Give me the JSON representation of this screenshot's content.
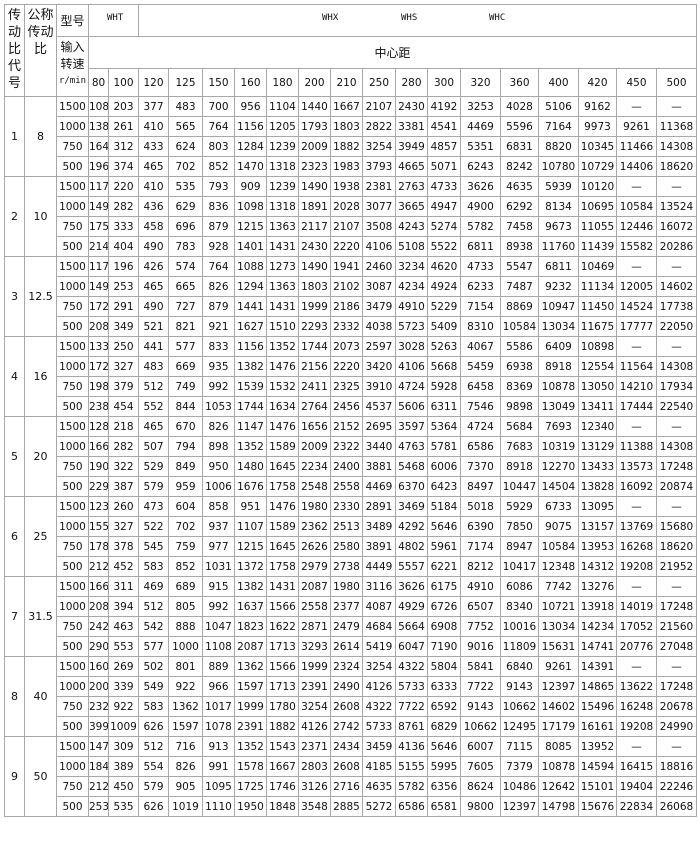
{
  "header": {
    "code_label": "传动比代号",
    "ratio_label": "公称传动比",
    "model_label": "型号",
    "speed_label": "输入转速",
    "speed_unit": "r/min",
    "model_wht": "WHT",
    "model_whx": "WHX",
    "model_whs": "WHS",
    "model_whc": "WHC",
    "center_distance_label": "中心距",
    "center_distances": [
      "80",
      "100",
      "120",
      "125",
      "150",
      "160",
      "180",
      "200",
      "210",
      "250",
      "280",
      "300",
      "320",
      "360",
      "400",
      "420",
      "450",
      "500"
    ]
  },
  "groups": [
    {
      "code": "1",
      "ratio": "8",
      "rows": [
        {
          "speed": "1500",
          "values": [
            "108",
            "203",
            "377",
            "483",
            "700",
            "956",
            "1104",
            "1440",
            "1667",
            "2107",
            "2430",
            "4192",
            "3253",
            "4028",
            "5106",
            "9162",
            "—",
            "—"
          ]
        },
        {
          "speed": "1000",
          "values": [
            "138",
            "261",
            "410",
            "565",
            "764",
            "1156",
            "1205",
            "1793",
            "1803",
            "2822",
            "3381",
            "4541",
            "4469",
            "5596",
            "7164",
            "9973",
            "9261",
            "11368"
          ]
        },
        {
          "speed": "750",
          "values": [
            "164",
            "312",
            "433",
            "624",
            "803",
            "1284",
            "1239",
            "2009",
            "1882",
            "3254",
            "3949",
            "4857",
            "5351",
            "6831",
            "8820",
            "10345",
            "11466",
            "14308"
          ]
        },
        {
          "speed": "500",
          "values": [
            "196",
            "374",
            "465",
            "702",
            "852",
            "1470",
            "1318",
            "2323",
            "1983",
            "3793",
            "4665",
            "5071",
            "6243",
            "8242",
            "10780",
            "10729",
            "14406",
            "18620"
          ]
        }
      ]
    },
    {
      "code": "2",
      "ratio": "10",
      "rows": [
        {
          "speed": "1500",
          "values": [
            "117",
            "220",
            "410",
            "535",
            "793",
            "909",
            "1239",
            "1490",
            "1938",
            "2381",
            "2763",
            "4733",
            "3626",
            "4635",
            "5939",
            "10120",
            "—",
            "—"
          ]
        },
        {
          "speed": "1000",
          "values": [
            "149",
            "282",
            "436",
            "629",
            "836",
            "1098",
            "1318",
            "1891",
            "2028",
            "3077",
            "3665",
            "4947",
            "4900",
            "6292",
            "8134",
            "10695",
            "10584",
            "13524"
          ]
        },
        {
          "speed": "750",
          "values": [
            "175",
            "333",
            "458",
            "696",
            "879",
            "1215",
            "1363",
            "2117",
            "2107",
            "3508",
            "4243",
            "5274",
            "5782",
            "7458",
            "9673",
            "11055",
            "12446",
            "16072"
          ]
        },
        {
          "speed": "500",
          "values": [
            "214",
            "404",
            "490",
            "783",
            "928",
            "1401",
            "1431",
            "2430",
            "2220",
            "4106",
            "5108",
            "5522",
            "6811",
            "8938",
            "11760",
            "11439",
            "15582",
            "20286"
          ]
        }
      ]
    },
    {
      "code": "3",
      "ratio": "12.5",
      "rows": [
        {
          "speed": "1500",
          "values": [
            "117",
            "196",
            "426",
            "574",
            "764",
            "1088",
            "1273",
            "1490",
            "1941",
            "2460",
            "3234",
            "4620",
            "4733",
            "5547",
            "6811",
            "10469",
            "—",
            "—"
          ]
        },
        {
          "speed": "1000",
          "values": [
            "149",
            "253",
            "465",
            "665",
            "826",
            "1294",
            "1363",
            "1803",
            "2102",
            "3087",
            "4234",
            "4924",
            "6233",
            "7487",
            "9232",
            "11134",
            "12005",
            "14602"
          ]
        },
        {
          "speed": "750",
          "values": [
            "172",
            "291",
            "490",
            "727",
            "879",
            "1441",
            "1431",
            "1999",
            "2186",
            "3479",
            "4910",
            "5229",
            "7154",
            "8869",
            "10947",
            "11450",
            "14524",
            "17738"
          ]
        },
        {
          "speed": "500",
          "values": [
            "208",
            "349",
            "521",
            "821",
            "921",
            "1627",
            "1510",
            "2293",
            "2332",
            "4038",
            "5723",
            "5409",
            "8310",
            "10584",
            "13034",
            "11675",
            "17777",
            "22050"
          ]
        }
      ]
    },
    {
      "code": "4",
      "ratio": "16",
      "rows": [
        {
          "speed": "1500",
          "values": [
            "133",
            "250",
            "441",
            "577",
            "833",
            "1156",
            "1352",
            "1744",
            "2073",
            "2597",
            "3028",
            "5263",
            "4067",
            "5586",
            "6409",
            "10898",
            "—",
            "—"
          ]
        },
        {
          "speed": "1000",
          "values": [
            "172",
            "327",
            "483",
            "669",
            "935",
            "1382",
            "1476",
            "2156",
            "2220",
            "3420",
            "4106",
            "5668",
            "5459",
            "6938",
            "8918",
            "12554",
            "11564",
            "14308"
          ]
        },
        {
          "speed": "750",
          "values": [
            "198",
            "379",
            "512",
            "749",
            "992",
            "1539",
            "1532",
            "2411",
            "2325",
            "3910",
            "4724",
            "5928",
            "6458",
            "8369",
            "10878",
            "13050",
            "14210",
            "17934"
          ]
        },
        {
          "speed": "500",
          "values": [
            "238",
            "454",
            "552",
            "844",
            "1053",
            "1744",
            "1634",
            "2764",
            "2456",
            "4537",
            "5606",
            "6311",
            "7546",
            "9898",
            "13049",
            "13411",
            "17444",
            "22540"
          ]
        }
      ]
    },
    {
      "code": "5",
      "ratio": "20",
      "rows": [
        {
          "speed": "1500",
          "values": [
            "128",
            "218",
            "465",
            "670",
            "826",
            "1147",
            "1476",
            "1656",
            "2152",
            "2695",
            "3597",
            "5364",
            "4724",
            "5684",
            "7693",
            "12340",
            "—",
            "—"
          ]
        },
        {
          "speed": "1000",
          "values": [
            "166",
            "282",
            "507",
            "794",
            "898",
            "1352",
            "1589",
            "2009",
            "2322",
            "3440",
            "4763",
            "5781",
            "6586",
            "7683",
            "10319",
            "13129",
            "11388",
            "14308"
          ]
        },
        {
          "speed": "750",
          "values": [
            "190",
            "322",
            "529",
            "849",
            "950",
            "1480",
            "1645",
            "2234",
            "2400",
            "3881",
            "5468",
            "6006",
            "7370",
            "8918",
            "12270",
            "13433",
            "13573",
            "17248"
          ]
        },
        {
          "speed": "500",
          "values": [
            "229",
            "387",
            "579",
            "959",
            "1006",
            "1676",
            "1758",
            "2548",
            "2558",
            "4469",
            "6370",
            "6423",
            "8497",
            "10447",
            "14504",
            "13828",
            "16092",
            "20874"
          ]
        }
      ]
    },
    {
      "code": "6",
      "ratio": "25",
      "rows": [
        {
          "speed": "1500",
          "values": [
            "123",
            "260",
            "473",
            "604",
            "858",
            "951",
            "1476",
            "1980",
            "2330",
            "2891",
            "3469",
            "5184",
            "5018",
            "5929",
            "6733",
            "13095",
            "—",
            "—"
          ]
        },
        {
          "speed": "1000",
          "values": [
            "155",
            "327",
            "522",
            "702",
            "937",
            "1107",
            "1589",
            "2362",
            "2513",
            "3489",
            "4292",
            "5646",
            "6390",
            "7850",
            "9075",
            "13157",
            "13769",
            "15680"
          ]
        },
        {
          "speed": "750",
          "values": [
            "178",
            "378",
            "545",
            "759",
            "977",
            "1215",
            "1645",
            "2626",
            "2580",
            "3891",
            "4802",
            "5961",
            "7174",
            "8947",
            "10584",
            "13953",
            "16268",
            "18620"
          ]
        },
        {
          "speed": "500",
          "values": [
            "212",
            "452",
            "583",
            "852",
            "1031",
            "1372",
            "1758",
            "2979",
            "2738",
            "4449",
            "5557",
            "6221",
            "8212",
            "10417",
            "12348",
            "14312",
            "19208",
            "21952"
          ]
        }
      ]
    },
    {
      "code": "7",
      "ratio": "31.5",
      "rows": [
        {
          "speed": "1500",
          "values": [
            "166",
            "311",
            "469",
            "689",
            "915",
            "1382",
            "1431",
            "2087",
            "1980",
            "3116",
            "3626",
            "6175",
            "4910",
            "6086",
            "7742",
            "13276",
            "—",
            "—"
          ]
        },
        {
          "speed": "1000",
          "values": [
            "208",
            "394",
            "512",
            "805",
            "992",
            "1637",
            "1566",
            "2558",
            "2377",
            "4087",
            "4929",
            "6726",
            "6507",
            "8340",
            "10721",
            "13918",
            "14019",
            "17248"
          ]
        },
        {
          "speed": "750",
          "values": [
            "242",
            "463",
            "542",
            "888",
            "1047",
            "1823",
            "1622",
            "2871",
            "2479",
            "4684",
            "5664",
            "6908",
            "7752",
            "10016",
            "13034",
            "14234",
            "17052",
            "21560"
          ]
        },
        {
          "speed": "500",
          "values": [
            "290",
            "553",
            "577",
            "1000",
            "1108",
            "2087",
            "1713",
            "3293",
            "2614",
            "5419",
            "6047",
            "7190",
            "9016",
            "11809",
            "15631",
            "14741",
            "20776",
            "27048"
          ]
        }
      ]
    },
    {
      "code": "8",
      "ratio": "40",
      "rows": [
        {
          "speed": "1500",
          "values": [
            "160",
            "269",
            "502",
            "801",
            "889",
            "1362",
            "1566",
            "1999",
            "2324",
            "3254",
            "4322",
            "5804",
            "5841",
            "6840",
            "9261",
            "14391",
            "—",
            "—"
          ]
        },
        {
          "speed": "1000",
          "values": [
            "200",
            "339",
            "549",
            "922",
            "966",
            "1597",
            "1713",
            "2391",
            "2490",
            "4126",
            "5733",
            "6333",
            "7722",
            "9143",
            "12397",
            "14865",
            "13622",
            "17248"
          ]
        },
        {
          "speed": "750",
          "values": [
            "232",
            "922",
            "583",
            "1362",
            "1017",
            "1999",
            "1780",
            "3254",
            "2608",
            "4322",
            "7722",
            "6592",
            "9143",
            "10662",
            "14602",
            "15496",
            "16248",
            "20678"
          ]
        },
        {
          "speed": "500",
          "values": [
            "399",
            "1009",
            "626",
            "1597",
            "1078",
            "2391",
            "1882",
            "4126",
            "2742",
            "5733",
            "8761",
            "6829",
            "10662",
            "12495",
            "17179",
            "16161",
            "19208",
            "24990"
          ]
        }
      ]
    },
    {
      "code": "9",
      "ratio": "50",
      "rows": [
        {
          "speed": "1500",
          "values": [
            "147",
            "309",
            "512",
            "716",
            "913",
            "1352",
            "1543",
            "2371",
            "2434",
            "3459",
            "4136",
            "5646",
            "6007",
            "7115",
            "8085",
            "13952",
            "—",
            "—"
          ]
        },
        {
          "speed": "1000",
          "values": [
            "184",
            "389",
            "554",
            "826",
            "991",
            "1578",
            "1667",
            "2803",
            "2608",
            "4185",
            "5155",
            "5995",
            "7605",
            "7379",
            "10878",
            "14594",
            "16415",
            "18816"
          ]
        },
        {
          "speed": "750",
          "values": [
            "212",
            "450",
            "579",
            "905",
            "1095",
            "1725",
            "1746",
            "3126",
            "2716",
            "4635",
            "5782",
            "6356",
            "8624",
            "10486",
            "12642",
            "15101",
            "19404",
            "22246"
          ]
        },
        {
          "speed": "500",
          "values": [
            "253",
            "535",
            "626",
            "1019",
            "1110",
            "1950",
            "1848",
            "3548",
            "2885",
            "5272",
            "6586",
            "6581",
            "9800",
            "12397",
            "14798",
            "15676",
            "22834",
            "26068"
          ]
        }
      ]
    }
  ]
}
